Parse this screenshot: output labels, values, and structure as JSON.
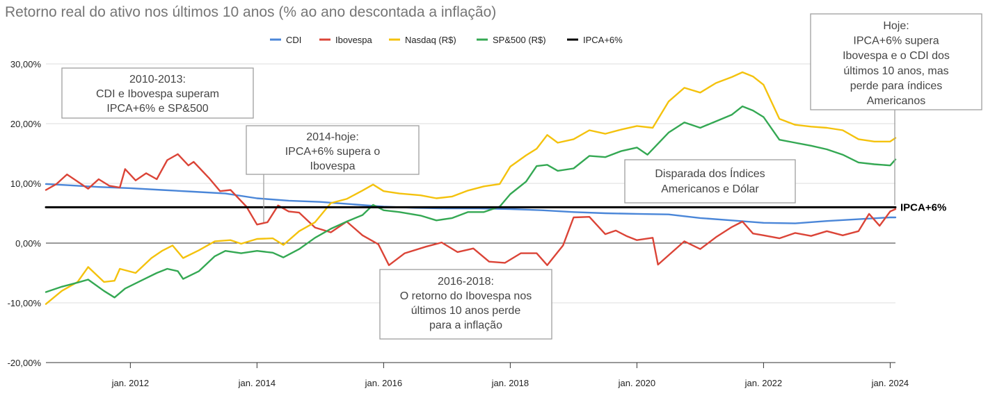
{
  "chart_data": {
    "type": "line",
    "title": "Retorno real do ativo nos últimos 10 anos (% ao ano descontada a inflação)",
    "xlabel": "",
    "ylabel": "",
    "ylim": [
      -20,
      30
    ],
    "xlim": [
      "2010-09",
      "2024-02"
    ],
    "y_ticks": [
      {
        "value": 30,
        "label": "30,00%"
      },
      {
        "value": 20,
        "label": "20,00%"
      },
      {
        "value": 10,
        "label": "10,00%"
      },
      {
        "value": 0,
        "label": "0,00%"
      },
      {
        "value": -10,
        "label": "-10,00%"
      },
      {
        "value": -20,
        "label": "-20,00%"
      }
    ],
    "x_ticks": [
      {
        "date": "2012-01",
        "label": "jan. 2012"
      },
      {
        "date": "2014-01",
        "label": "jan. 2014"
      },
      {
        "date": "2016-01",
        "label": "jan. 2016"
      },
      {
        "date": "2018-01",
        "label": "jan. 2018"
      },
      {
        "date": "2020-01",
        "label": "jan. 2020"
      },
      {
        "date": "2022-01",
        "label": "jan. 2022"
      },
      {
        "date": "2024-01",
        "label": "jan. 2024"
      }
    ],
    "grid": true,
    "legend": "top",
    "series": [
      {
        "name": "CDI",
        "color": "#4a86d8",
        "points": [
          [
            "2010-09",
            9.9
          ],
          [
            "2011-01",
            9.7
          ],
          [
            "2011-07",
            9.4
          ],
          [
            "2012-01",
            9.2
          ],
          [
            "2012-07",
            8.9
          ],
          [
            "2013-01",
            8.6
          ],
          [
            "2013-07",
            8.3
          ],
          [
            "2014-01",
            7.5
          ],
          [
            "2014-07",
            7.1
          ],
          [
            "2015-01",
            6.9
          ],
          [
            "2015-07",
            6.5
          ],
          [
            "2016-01",
            6.1
          ],
          [
            "2016-07",
            5.9
          ],
          [
            "2017-01",
            5.8
          ],
          [
            "2017-07",
            5.8
          ],
          [
            "2018-01",
            5.7
          ],
          [
            "2018-07",
            5.5
          ],
          [
            "2019-01",
            5.2
          ],
          [
            "2019-07",
            5.0
          ],
          [
            "2020-01",
            4.9
          ],
          [
            "2020-07",
            4.8
          ],
          [
            "2021-01",
            4.2
          ],
          [
            "2021-07",
            3.8
          ],
          [
            "2022-01",
            3.4
          ],
          [
            "2022-07",
            3.3
          ],
          [
            "2023-01",
            3.7
          ],
          [
            "2023-07",
            4.0
          ],
          [
            "2024-01",
            4.3
          ],
          [
            "2024-02",
            4.3
          ]
        ]
      },
      {
        "name": "Ibovespa",
        "color": "#db4437",
        "points": [
          [
            "2010-09",
            8.9
          ],
          [
            "2010-11",
            9.9
          ],
          [
            "2011-01",
            11.5
          ],
          [
            "2011-03",
            10.3
          ],
          [
            "2011-05",
            9.1
          ],
          [
            "2011-07",
            10.7
          ],
          [
            "2011-09",
            9.6
          ],
          [
            "2011-11",
            9.3
          ],
          [
            "2011-12",
            12.4
          ],
          [
            "2012-02",
            10.5
          ],
          [
            "2012-04",
            11.7
          ],
          [
            "2012-06",
            10.7
          ],
          [
            "2012-08",
            13.9
          ],
          [
            "2012-10",
            14.9
          ],
          [
            "2012-12",
            13.0
          ],
          [
            "2013-01",
            13.6
          ],
          [
            "2013-04",
            10.8
          ],
          [
            "2013-06",
            8.7
          ],
          [
            "2013-08",
            8.9
          ],
          [
            "2013-11",
            6.1
          ],
          [
            "2014-01",
            3.1
          ],
          [
            "2014-03",
            3.5
          ],
          [
            "2014-05",
            6.3
          ],
          [
            "2014-07",
            5.3
          ],
          [
            "2014-09",
            5.1
          ],
          [
            "2014-12",
            2.6
          ],
          [
            "2015-03",
            1.8
          ],
          [
            "2015-06",
            3.6
          ],
          [
            "2015-09",
            1.3
          ],
          [
            "2015-12",
            -0.2
          ],
          [
            "2016-02",
            -3.7
          ],
          [
            "2016-05",
            -1.7
          ],
          [
            "2016-09",
            -0.6
          ],
          [
            "2016-12",
            0.1
          ],
          [
            "2017-03",
            -1.5
          ],
          [
            "2017-06",
            -0.9
          ],
          [
            "2017-09",
            -3.1
          ],
          [
            "2017-12",
            -3.3
          ],
          [
            "2018-03",
            -1.7
          ],
          [
            "2018-06",
            -1.7
          ],
          [
            "2018-08",
            -3.7
          ],
          [
            "2018-11",
            -0.4
          ],
          [
            "2019-01",
            4.3
          ],
          [
            "2019-04",
            4.4
          ],
          [
            "2019-07",
            1.5
          ],
          [
            "2019-09",
            2.1
          ],
          [
            "2019-11",
            1.2
          ],
          [
            "2020-01",
            0.5
          ],
          [
            "2020-04",
            0.9
          ],
          [
            "2020-05",
            -3.6
          ],
          [
            "2020-10",
            0.3
          ],
          [
            "2021-01",
            -1.0
          ],
          [
            "2021-04",
            1.0
          ],
          [
            "2021-07",
            2.7
          ],
          [
            "2021-09",
            3.6
          ],
          [
            "2021-11",
            1.6
          ],
          [
            "2022-01",
            1.3
          ],
          [
            "2022-04",
            0.8
          ],
          [
            "2022-07",
            1.7
          ],
          [
            "2022-10",
            1.2
          ],
          [
            "2023-01",
            2.0
          ],
          [
            "2023-04",
            1.3
          ],
          [
            "2023-07",
            2.0
          ],
          [
            "2023-09",
            4.9
          ],
          [
            "2023-11",
            2.9
          ],
          [
            "2024-01",
            5.3
          ],
          [
            "2024-02",
            5.7
          ]
        ]
      },
      {
        "name": "Nasdaq (R$)",
        "color": "#f4c20d",
        "points": [
          [
            "2010-09",
            -10.2
          ],
          [
            "2010-12",
            -8.0
          ],
          [
            "2011-03",
            -6.5
          ],
          [
            "2011-05",
            -4.0
          ],
          [
            "2011-08",
            -6.5
          ],
          [
            "2011-10",
            -6.3
          ],
          [
            "2011-11",
            -4.3
          ],
          [
            "2012-02",
            -5.0
          ],
          [
            "2012-05",
            -2.5
          ],
          [
            "2012-07",
            -1.3
          ],
          [
            "2012-09",
            -0.4
          ],
          [
            "2012-11",
            -2.5
          ],
          [
            "2013-02",
            -1.2
          ],
          [
            "2013-05",
            0.3
          ],
          [
            "2013-08",
            0.5
          ],
          [
            "2013-10",
            -0.1
          ],
          [
            "2014-01",
            0.7
          ],
          [
            "2014-04",
            0.8
          ],
          [
            "2014-06",
            -0.3
          ],
          [
            "2014-09",
            2.0
          ],
          [
            "2014-12",
            3.5
          ],
          [
            "2015-03",
            6.7
          ],
          [
            "2015-06",
            7.4
          ],
          [
            "2015-09",
            8.8
          ],
          [
            "2015-11",
            9.8
          ],
          [
            "2016-01",
            8.7
          ],
          [
            "2016-04",
            8.3
          ],
          [
            "2016-08",
            8.0
          ],
          [
            "2016-11",
            7.5
          ],
          [
            "2017-02",
            7.8
          ],
          [
            "2017-05",
            8.8
          ],
          [
            "2017-08",
            9.5
          ],
          [
            "2017-11",
            9.9
          ],
          [
            "2018-01",
            12.8
          ],
          [
            "2018-04",
            14.7
          ],
          [
            "2018-06",
            15.8
          ],
          [
            "2018-08",
            18.1
          ],
          [
            "2018-10",
            16.8
          ],
          [
            "2019-01",
            17.4
          ],
          [
            "2019-04",
            18.9
          ],
          [
            "2019-07",
            18.3
          ],
          [
            "2019-10",
            19.0
          ],
          [
            "2020-01",
            19.6
          ],
          [
            "2020-04",
            19.3
          ],
          [
            "2020-07",
            23.7
          ],
          [
            "2020-10",
            26.0
          ],
          [
            "2021-01",
            25.2
          ],
          [
            "2021-04",
            26.8
          ],
          [
            "2021-07",
            27.8
          ],
          [
            "2021-09",
            28.6
          ],
          [
            "2021-11",
            27.9
          ],
          [
            "2022-01",
            26.5
          ],
          [
            "2022-04",
            20.8
          ],
          [
            "2022-07",
            19.8
          ],
          [
            "2022-10",
            19.5
          ],
          [
            "2023-01",
            19.3
          ],
          [
            "2023-04",
            18.9
          ],
          [
            "2023-07",
            17.4
          ],
          [
            "2023-10",
            17.0
          ],
          [
            "2024-01",
            17.0
          ],
          [
            "2024-02",
            17.6
          ]
        ]
      },
      {
        "name": "SP&500 (R$)",
        "color": "#34a853",
        "points": [
          [
            "2010-09",
            -8.2
          ],
          [
            "2010-12",
            -7.3
          ],
          [
            "2011-03",
            -6.6
          ],
          [
            "2011-05",
            -6.1
          ],
          [
            "2011-08",
            -8.0
          ],
          [
            "2011-10",
            -9.1
          ],
          [
            "2011-12",
            -7.6
          ],
          [
            "2012-03",
            -6.3
          ],
          [
            "2012-06",
            -5.0
          ],
          [
            "2012-08",
            -4.3
          ],
          [
            "2012-10",
            -4.7
          ],
          [
            "2012-11",
            -6.0
          ],
          [
            "2013-02",
            -4.7
          ],
          [
            "2013-05",
            -2.2
          ],
          [
            "2013-07",
            -1.3
          ],
          [
            "2013-10",
            -1.7
          ],
          [
            "2014-01",
            -1.3
          ],
          [
            "2014-04",
            -1.6
          ],
          [
            "2014-06",
            -2.4
          ],
          [
            "2014-09",
            -1.0
          ],
          [
            "2014-12",
            0.9
          ],
          [
            "2015-03",
            2.4
          ],
          [
            "2015-06",
            3.6
          ],
          [
            "2015-09",
            4.7
          ],
          [
            "2015-11",
            6.4
          ],
          [
            "2016-01",
            5.5
          ],
          [
            "2016-04",
            5.2
          ],
          [
            "2016-08",
            4.6
          ],
          [
            "2016-11",
            3.8
          ],
          [
            "2017-02",
            4.2
          ],
          [
            "2017-05",
            5.2
          ],
          [
            "2017-08",
            5.2
          ],
          [
            "2017-11",
            6.1
          ],
          [
            "2018-01",
            8.2
          ],
          [
            "2018-04",
            10.3
          ],
          [
            "2018-06",
            12.9
          ],
          [
            "2018-08",
            13.1
          ],
          [
            "2018-10",
            12.1
          ],
          [
            "2019-01",
            12.5
          ],
          [
            "2019-04",
            14.6
          ],
          [
            "2019-07",
            14.4
          ],
          [
            "2019-10",
            15.4
          ],
          [
            "2020-01",
            16.0
          ],
          [
            "2020-03",
            14.8
          ],
          [
            "2020-07",
            18.5
          ],
          [
            "2020-10",
            20.2
          ],
          [
            "2021-01",
            19.3
          ],
          [
            "2021-04",
            20.4
          ],
          [
            "2021-07",
            21.5
          ],
          [
            "2021-09",
            22.9
          ],
          [
            "2021-11",
            22.2
          ],
          [
            "2022-01",
            21.1
          ],
          [
            "2022-04",
            17.3
          ],
          [
            "2022-07",
            16.8
          ],
          [
            "2022-10",
            16.3
          ],
          [
            "2023-01",
            15.7
          ],
          [
            "2023-04",
            14.8
          ],
          [
            "2023-07",
            13.5
          ],
          [
            "2023-10",
            13.2
          ],
          [
            "2024-01",
            13.0
          ],
          [
            "2024-02",
            14.0
          ]
        ]
      },
      {
        "name": "IPCA+6%",
        "color": "#000000",
        "points": [
          [
            "2010-09",
            6.0
          ],
          [
            "2024-02",
            6.0
          ]
        ]
      }
    ],
    "reference_label": "IPCA+6%",
    "annotations": [
      {
        "id": "a2010",
        "lines": [
          "2010-2013:",
          "CDI e Ibovespa superam",
          "IPCA+6% e SP&500"
        ]
      },
      {
        "id": "a2014",
        "lines": [
          "2014-hoje:",
          "IPCA+6% supera o",
          "Ibovespa"
        ]
      },
      {
        "id": "a2016",
        "lines": [
          "2016-2018:",
          "O retorno do Ibovespa nos",
          "últimos 10 anos perde",
          "para a inflação"
        ]
      },
      {
        "id": "adisp",
        "lines": [
          "Disparada dos Índices",
          "Americanos e Dólar"
        ]
      },
      {
        "id": "ahoje",
        "lines": [
          "Hoje:",
          "IPCA+6% supera",
          "Ibovespa e o CDI dos",
          "últimos 10 anos, mas",
          "perde para índices",
          "Americanos"
        ]
      }
    ]
  }
}
